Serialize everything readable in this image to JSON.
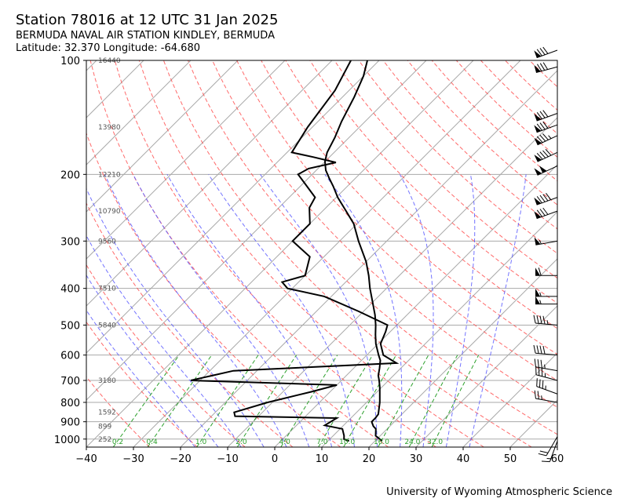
{
  "title": "Station 78016 at 12 UTC 31 Jan 2025",
  "subtitle": "BERMUDA NAVAL AIR STATION KINDLEY, BERMUDA",
  "location": "Latitude: 32.370 Longitude: -64.680",
  "credit": "University of Wyoming Atmospheric Science",
  "chart_data": {
    "type": "skew-t log-p",
    "x_axis": {
      "ticks": [
        -40,
        -30,
        -20,
        -10,
        0,
        10,
        20,
        30,
        40,
        50,
        60
      ],
      "range": [
        -40,
        60
      ],
      "unit": "°C"
    },
    "y_axis": {
      "ticks": [
        100,
        200,
        300,
        400,
        500,
        600,
        700,
        800,
        900,
        1000
      ],
      "range": [
        1050,
        100
      ],
      "scale": "log",
      "unit": "hPa"
    },
    "height_labels": [
      {
        "p": 100,
        "label": "16440"
      },
      {
        "p": 150,
        "label": "13980"
      },
      {
        "p": 200,
        "label": "12210"
      },
      {
        "p": 250,
        "label": "10790"
      },
      {
        "p": 300,
        "label": "9560"
      },
      {
        "p": 400,
        "label": "7510"
      },
      {
        "p": 500,
        "label": "5840"
      },
      {
        "p": 700,
        "label": "3180"
      },
      {
        "p": 850,
        "label": "1592"
      },
      {
        "p": 925,
        "label": "899"
      },
      {
        "p": 1000,
        "label": "252"
      }
    ],
    "mixing_ratio_labels": [
      "0.2",
      "0.4",
      "1.0",
      "2.0",
      "4.0",
      "7.0",
      "10.0",
      "16.0",
      "24.0",
      "32.0"
    ],
    "mixing_ratio_values": [
      0.2,
      0.4,
      1.0,
      2.0,
      4.0,
      7.0,
      10.0,
      16.0,
      24.0,
      32.0
    ],
    "temperature": [
      [
        1012,
        21.5
      ],
      [
        1000,
        20.6
      ],
      [
        980,
        19.0
      ],
      [
        940,
        17.6
      ],
      [
        925,
        16.5
      ],
      [
        900,
        15.2
      ],
      [
        880,
        15.2
      ],
      [
        860,
        15.0
      ],
      [
        800,
        12.8
      ],
      [
        760,
        11.0
      ],
      [
        730,
        9.6
      ],
      [
        700,
        8.0
      ],
      [
        680,
        6.8
      ],
      [
        650,
        5.5
      ],
      [
        620,
        4.0
      ],
      [
        600,
        2.5
      ],
      [
        560,
        -0.5
      ],
      [
        530,
        -2.5
      ],
      [
        500,
        -4.5
      ],
      [
        470,
        -6.8
      ],
      [
        430,
        -10.5
      ],
      [
        400,
        -13.5
      ],
      [
        370,
        -16.5
      ],
      [
        340,
        -20.0
      ],
      [
        300,
        -26.0
      ],
      [
        270,
        -30.7
      ],
      [
        250,
        -35.0
      ],
      [
        230,
        -39.7
      ],
      [
        215,
        -43.0
      ],
      [
        205,
        -45.5
      ],
      [
        195,
        -48.0
      ],
      [
        185,
        -50.0
      ],
      [
        175,
        -51.5
      ],
      [
        160,
        -53.0
      ],
      [
        145,
        -55.0
      ],
      [
        125,
        -57.5
      ],
      [
        110,
        -60.0
      ],
      [
        100,
        -62.5
      ]
    ],
    "dewpoint": [
      [
        1012,
        14.5
      ],
      [
        1000,
        13.0
      ],
      [
        980,
        12.3
      ],
      [
        940,
        10.5
      ],
      [
        920,
        6.0
      ],
      [
        900,
        6.5
      ],
      [
        880,
        7.0
      ],
      [
        870,
        -15.0
      ],
      [
        850,
        -16.0
      ],
      [
        800,
        -11.0
      ],
      [
        750,
        -4.0
      ],
      [
        720,
        0.0
      ],
      [
        700,
        -32.0
      ],
      [
        680,
        -28.5
      ],
      [
        660,
        -25.0
      ],
      [
        630,
        8.0
      ],
      [
        600,
        3.5
      ],
      [
        560,
        0.5
      ],
      [
        520,
        -1.0
      ],
      [
        500,
        -2.0
      ],
      [
        460,
        -11.0
      ],
      [
        420,
        -21.5
      ],
      [
        400,
        -31.0
      ],
      [
        385,
        -33.5
      ],
      [
        370,
        -30.0
      ],
      [
        330,
        -33.0
      ],
      [
        300,
        -40.0
      ],
      [
        270,
        -40.0
      ],
      [
        245,
        -43.5
      ],
      [
        230,
        -44.5
      ],
      [
        210,
        -50.0
      ],
      [
        200,
        -53.0
      ],
      [
        193,
        -52.0
      ],
      [
        186,
        -47.5
      ],
      [
        180,
        -53.5
      ],
      [
        175,
        -59.0
      ],
      [
        150,
        -61.0
      ],
      [
        120,
        -63.0
      ],
      [
        100,
        -66.0
      ]
    ],
    "wind_barbs": [
      {
        "p": 1012,
        "speed": 15,
        "dir": 200
      },
      {
        "p": 985,
        "speed": 20,
        "dir": 210
      },
      {
        "p": 800,
        "speed": 25,
        "dir": 280
      },
      {
        "p": 760,
        "speed": 35,
        "dir": 290
      },
      {
        "p": 700,
        "speed": 35,
        "dir": 285
      },
      {
        "p": 660,
        "speed": 35,
        "dir": 280
      },
      {
        "p": 600,
        "speed": 40,
        "dir": 275
      },
      {
        "p": 500,
        "speed": 45,
        "dir": 275
      },
      {
        "p": 440,
        "speed": 55,
        "dir": 270
      },
      {
        "p": 420,
        "speed": 55,
        "dir": 270
      },
      {
        "p": 370,
        "speed": 60,
        "dir": 270
      },
      {
        "p": 300,
        "speed": 55,
        "dir": 260
      },
      {
        "p": 250,
        "speed": 80,
        "dir": 250
      },
      {
        "p": 230,
        "speed": 90,
        "dir": 250
      },
      {
        "p": 190,
        "speed": 100,
        "dir": 245
      },
      {
        "p": 175,
        "speed": 90,
        "dir": 245
      },
      {
        "p": 158,
        "speed": 85,
        "dir": 245
      },
      {
        "p": 148,
        "speed": 80,
        "dir": 250
      },
      {
        "p": 138,
        "speed": 80,
        "dir": 250
      },
      {
        "p": 104,
        "speed": 80,
        "dir": 255
      },
      {
        "p": 94,
        "speed": 80,
        "dir": 250
      }
    ]
  }
}
